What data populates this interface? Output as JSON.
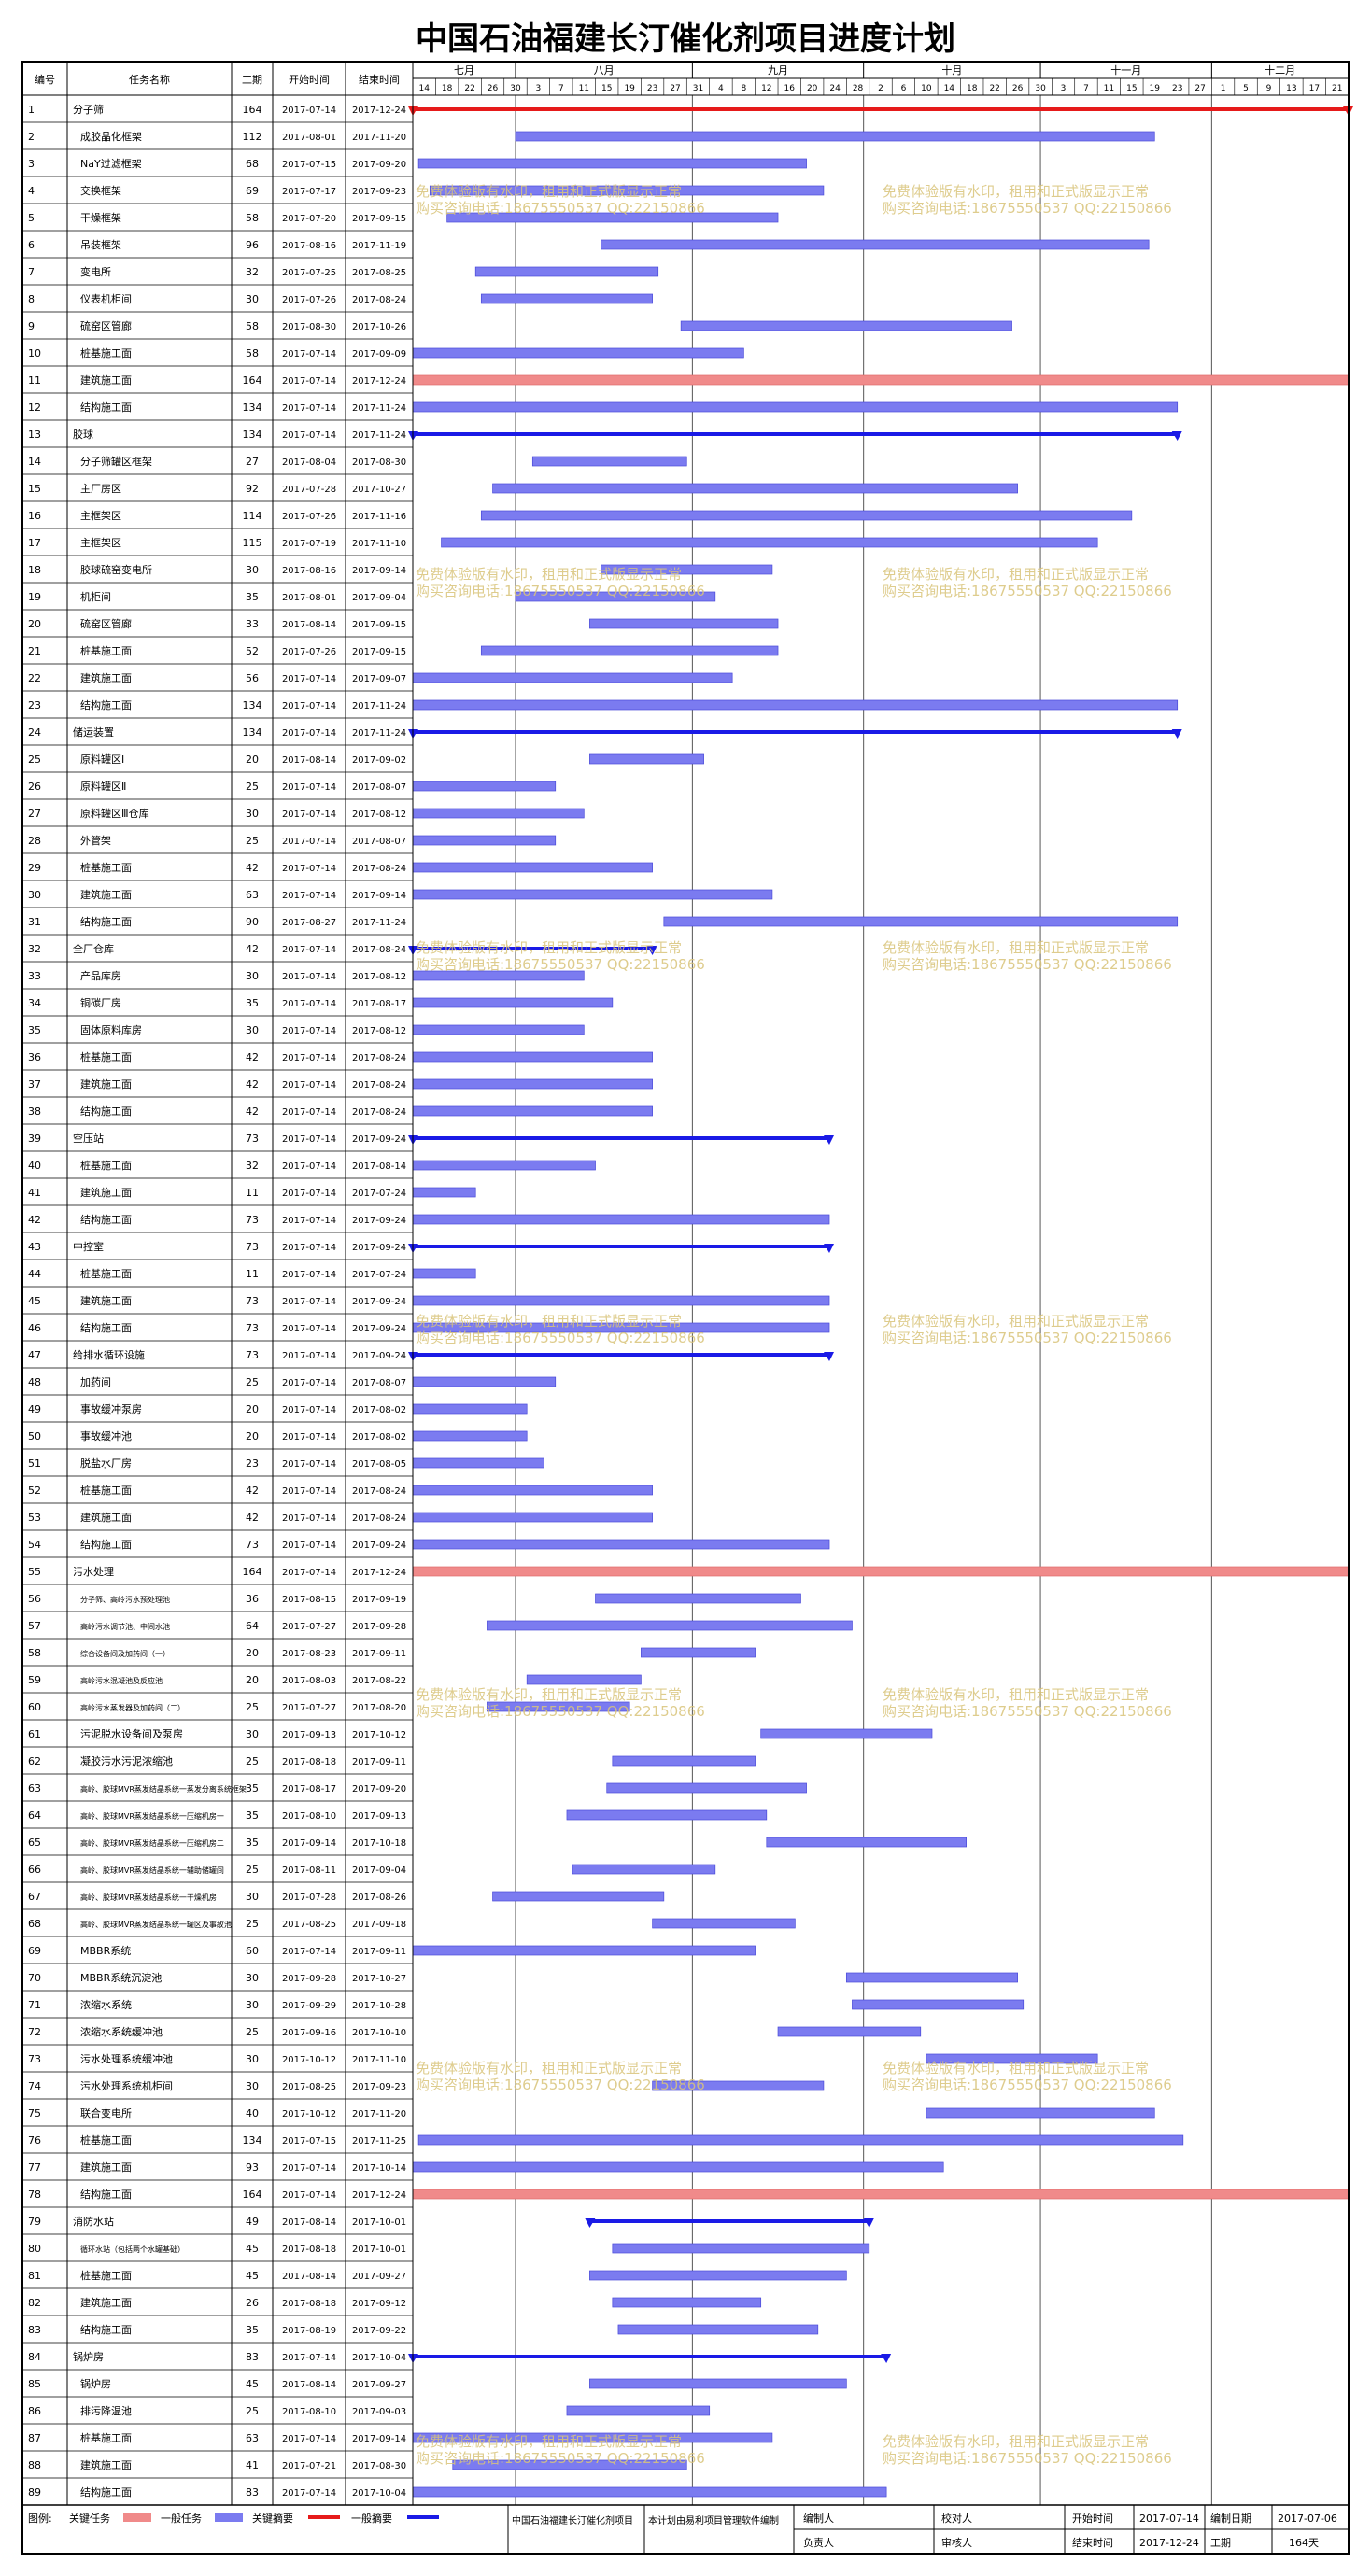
{
  "title": "中国石油福建长汀催化剂项目进度计划",
  "headers": {
    "id": "编号",
    "name": "任务名称",
    "duration": "工期",
    "start": "开始时间",
    "end": "结束时间"
  },
  "months": [
    "七月",
    "八月",
    "九月",
    "十月",
    "十一月",
    "十二月"
  ],
  "day_ticks": [
    "14",
    "18",
    "22",
    "26",
    "30",
    "3",
    "7",
    "11",
    "15",
    "19",
    "23",
    "27",
    "31",
    "4",
    "8",
    "12",
    "16",
    "20",
    "24",
    "28",
    "2",
    "6",
    "10",
    "14",
    "18",
    "22",
    "26",
    "30",
    "3",
    "7",
    "11",
    "15",
    "19",
    "23",
    "27",
    "1",
    "5",
    "9",
    "13",
    "17",
    "21"
  ],
  "watermark": {
    "line1": "免费体验版有水印，租用和正式版显示正常",
    "line2": "购买咨询电话:18675550537 QQ:22150866"
  },
  "colors": {
    "general": "#7b7bf0",
    "key": "#f08a8a",
    "summary_general": "#1a1ae6",
    "summary_key": "#e61a1a"
  },
  "footer": {
    "legend_label": "图例:",
    "legend_key": "关键任务",
    "legend_general": "一般任务",
    "legend_key_summary": "关键摘要",
    "legend_general_summary": "一般摘要",
    "project": "中国石油福建长汀催化剂项目",
    "software": "本计划由易利项目管理软件编制",
    "editor": "编制人",
    "checker": "校对人",
    "responsible": "负责人",
    "reviewer": "审核人",
    "start_label": "开始时间",
    "start_value": "2017-07-14",
    "end_label": "结束时间",
    "end_value": "2017-12-24",
    "date_label": "编制日期",
    "date_value": "2017-07-06",
    "duration_label": "工期",
    "duration_value": "164天"
  },
  "chart_data": {
    "type": "gantt",
    "axis_start": "2017-07-14",
    "axis_end": "2017-12-24",
    "tasks": [
      {
        "id": "1",
        "name": "分子筛",
        "duration": "164",
        "start": "2017-07-14",
        "end": "2017-12-24",
        "type": "summary_key",
        "level": 0
      },
      {
        "id": "2",
        "name": "成胶晶化框架",
        "duration": "112",
        "start": "2017-08-01",
        "end": "2017-11-20",
        "type": "general",
        "level": 1
      },
      {
        "id": "3",
        "name": "NaY过滤框架",
        "duration": "68",
        "start": "2017-07-15",
        "end": "2017-09-20",
        "type": "general",
        "level": 1
      },
      {
        "id": "4",
        "name": "交换框架",
        "duration": "69",
        "start": "2017-07-17",
        "end": "2017-09-23",
        "type": "general",
        "level": 1
      },
      {
        "id": "5",
        "name": "干燥框架",
        "duration": "58",
        "start": "2017-07-20",
        "end": "2017-09-15",
        "type": "general",
        "level": 1
      },
      {
        "id": "6",
        "name": "吊装框架",
        "duration": "96",
        "start": "2017-08-16",
        "end": "2017-11-19",
        "type": "general",
        "level": 1
      },
      {
        "id": "7",
        "name": "变电所",
        "duration": "32",
        "start": "2017-07-25",
        "end": "2017-08-25",
        "type": "general",
        "level": 1
      },
      {
        "id": "8",
        "name": "仪表机柜间",
        "duration": "30",
        "start": "2017-07-26",
        "end": "2017-08-24",
        "type": "general",
        "level": 1
      },
      {
        "id": "9",
        "name": "硫窑区管廊",
        "duration": "58",
        "start": "2017-08-30",
        "end": "2017-10-26",
        "type": "general",
        "level": 1
      },
      {
        "id": "10",
        "name": "桩基施工面",
        "duration": "58",
        "start": "2017-07-14",
        "end": "2017-09-09",
        "type": "general",
        "level": 1
      },
      {
        "id": "11",
        "name": "建筑施工面",
        "duration": "164",
        "start": "2017-07-14",
        "end": "2017-12-24",
        "type": "key",
        "level": 1
      },
      {
        "id": "12",
        "name": "结构施工面",
        "duration": "134",
        "start": "2017-07-14",
        "end": "2017-11-24",
        "type": "general",
        "level": 1
      },
      {
        "id": "13",
        "name": "胶球",
        "duration": "134",
        "start": "2017-07-14",
        "end": "2017-11-24",
        "type": "summary_general",
        "level": 0
      },
      {
        "id": "14",
        "name": "分子筛罐区框架",
        "duration": "27",
        "start": "2017-08-04",
        "end": "2017-08-30",
        "type": "general",
        "level": 1
      },
      {
        "id": "15",
        "name": "主厂房区",
        "duration": "92",
        "start": "2017-07-28",
        "end": "2017-10-27",
        "type": "general",
        "level": 1
      },
      {
        "id": "16",
        "name": "主框架区",
        "duration": "114",
        "start": "2017-07-26",
        "end": "2017-11-16",
        "type": "general",
        "level": 1
      },
      {
        "id": "17",
        "name": "主框架区",
        "duration": "115",
        "start": "2017-07-19",
        "end": "2017-11-10",
        "type": "general",
        "level": 1
      },
      {
        "id": "18",
        "name": "胶球硫窑变电所",
        "duration": "30",
        "start": "2017-08-16",
        "end": "2017-09-14",
        "type": "general",
        "level": 1
      },
      {
        "id": "19",
        "name": "机柜间",
        "duration": "35",
        "start": "2017-08-01",
        "end": "2017-09-04",
        "type": "general",
        "level": 1
      },
      {
        "id": "20",
        "name": "硫窑区管廊",
        "duration": "33",
        "start": "2017-08-14",
        "end": "2017-09-15",
        "type": "general",
        "level": 1
      },
      {
        "id": "21",
        "name": "桩基施工面",
        "duration": "52",
        "start": "2017-07-26",
        "end": "2017-09-15",
        "type": "general",
        "level": 1
      },
      {
        "id": "22",
        "name": "建筑施工面",
        "duration": "56",
        "start": "2017-07-14",
        "end": "2017-09-07",
        "type": "general",
        "level": 1
      },
      {
        "id": "23",
        "name": "结构施工面",
        "duration": "134",
        "start": "2017-07-14",
        "end": "2017-11-24",
        "type": "general",
        "level": 1
      },
      {
        "id": "24",
        "name": "储运装置",
        "duration": "134",
        "start": "2017-07-14",
        "end": "2017-11-24",
        "type": "summary_general",
        "level": 0
      },
      {
        "id": "25",
        "name": "原料罐区Ⅰ",
        "duration": "20",
        "start": "2017-08-14",
        "end": "2017-09-02",
        "type": "general",
        "level": 1
      },
      {
        "id": "26",
        "name": "原料罐区Ⅱ",
        "duration": "25",
        "start": "2017-07-14",
        "end": "2017-08-07",
        "type": "general",
        "level": 1
      },
      {
        "id": "27",
        "name": "原料罐区Ⅲ仓库",
        "duration": "30",
        "start": "2017-07-14",
        "end": "2017-08-12",
        "type": "general",
        "level": 1
      },
      {
        "id": "28",
        "name": "外管架",
        "duration": "25",
        "start": "2017-07-14",
        "end": "2017-08-07",
        "type": "general",
        "level": 1
      },
      {
        "id": "29",
        "name": "桩基施工面",
        "duration": "42",
        "start": "2017-07-14",
        "end": "2017-08-24",
        "type": "general",
        "level": 1
      },
      {
        "id": "30",
        "name": "建筑施工面",
        "duration": "63",
        "start": "2017-07-14",
        "end": "2017-09-14",
        "type": "general",
        "level": 1
      },
      {
        "id": "31",
        "name": "结构施工面",
        "duration": "90",
        "start": "2017-08-27",
        "end": "2017-11-24",
        "type": "general",
        "level": 1
      },
      {
        "id": "32",
        "name": "全厂仓库",
        "duration": "42",
        "start": "2017-07-14",
        "end": "2017-08-24",
        "type": "summary_general",
        "level": 0
      },
      {
        "id": "33",
        "name": "产品库房",
        "duration": "30",
        "start": "2017-07-14",
        "end": "2017-08-12",
        "type": "general",
        "level": 1
      },
      {
        "id": "34",
        "name": "铜碳厂房",
        "duration": "35",
        "start": "2017-07-14",
        "end": "2017-08-17",
        "type": "general",
        "level": 1
      },
      {
        "id": "35",
        "name": "固体原料库房",
        "duration": "30",
        "start": "2017-07-14",
        "end": "2017-08-12",
        "type": "general",
        "level": 1
      },
      {
        "id": "36",
        "name": "桩基施工面",
        "duration": "42",
        "start": "2017-07-14",
        "end": "2017-08-24",
        "type": "general",
        "level": 1
      },
      {
        "id": "37",
        "name": "建筑施工面",
        "duration": "42",
        "start": "2017-07-14",
        "end": "2017-08-24",
        "type": "general",
        "level": 1
      },
      {
        "id": "38",
        "name": "结构施工面",
        "duration": "42",
        "start": "2017-07-14",
        "end": "2017-08-24",
        "type": "general",
        "level": 1
      },
      {
        "id": "39",
        "name": "空压站",
        "duration": "73",
        "start": "2017-07-14",
        "end": "2017-09-24",
        "type": "summary_general",
        "level": 0
      },
      {
        "id": "40",
        "name": "桩基施工面",
        "duration": "32",
        "start": "2017-07-14",
        "end": "2017-08-14",
        "type": "general",
        "level": 1
      },
      {
        "id": "41",
        "name": "建筑施工面",
        "duration": "11",
        "start": "2017-07-14",
        "end": "2017-07-24",
        "type": "general",
        "level": 1
      },
      {
        "id": "42",
        "name": "结构施工面",
        "duration": "73",
        "start": "2017-07-14",
        "end": "2017-09-24",
        "type": "general",
        "level": 1
      },
      {
        "id": "43",
        "name": "中控室",
        "duration": "73",
        "start": "2017-07-14",
        "end": "2017-09-24",
        "type": "summary_general",
        "level": 0
      },
      {
        "id": "44",
        "name": "桩基施工面",
        "duration": "11",
        "start": "2017-07-14",
        "end": "2017-07-24",
        "type": "general",
        "level": 1
      },
      {
        "id": "45",
        "name": "建筑施工面",
        "duration": "73",
        "start": "2017-07-14",
        "end": "2017-09-24",
        "type": "general",
        "level": 1
      },
      {
        "id": "46",
        "name": "结构施工面",
        "duration": "73",
        "start": "2017-07-14",
        "end": "2017-09-24",
        "type": "general",
        "level": 1
      },
      {
        "id": "47",
        "name": "给排水循环设施",
        "duration": "73",
        "start": "2017-07-14",
        "end": "2017-09-24",
        "type": "summary_general",
        "level": 0
      },
      {
        "id": "48",
        "name": "加药间",
        "duration": "25",
        "start": "2017-07-14",
        "end": "2017-08-07",
        "type": "general",
        "level": 1
      },
      {
        "id": "49",
        "name": "事故缓冲泵房",
        "duration": "20",
        "start": "2017-07-14",
        "end": "2017-08-02",
        "type": "general",
        "level": 1
      },
      {
        "id": "50",
        "name": "事故缓冲池",
        "duration": "20",
        "start": "2017-07-14",
        "end": "2017-08-02",
        "type": "general",
        "level": 1
      },
      {
        "id": "51",
        "name": "脱盐水厂房",
        "duration": "23",
        "start": "2017-07-14",
        "end": "2017-08-05",
        "type": "general",
        "level": 1
      },
      {
        "id": "52",
        "name": "桩基施工面",
        "duration": "42",
        "start": "2017-07-14",
        "end": "2017-08-24",
        "type": "general",
        "level": 1
      },
      {
        "id": "53",
        "name": "建筑施工面",
        "duration": "42",
        "start": "2017-07-14",
        "end": "2017-08-24",
        "type": "general",
        "level": 1
      },
      {
        "id": "54",
        "name": "结构施工面",
        "duration": "73",
        "start": "2017-07-14",
        "end": "2017-09-24",
        "type": "general",
        "level": 1
      },
      {
        "id": "55",
        "name": "污水处理",
        "duration": "164",
        "start": "2017-07-14",
        "end": "2017-12-24",
        "type": "key",
        "level": 0
      },
      {
        "id": "56",
        "name": "分子筛、高岭污水预处理池",
        "duration": "36",
        "start": "2017-08-15",
        "end": "2017-09-19",
        "type": "general",
        "level": 1,
        "small": true
      },
      {
        "id": "57",
        "name": "高岭污水调节池、中间水池",
        "duration": "64",
        "start": "2017-07-27",
        "end": "2017-09-28",
        "type": "general",
        "level": 1,
        "small": true
      },
      {
        "id": "58",
        "name": "综合设备间及加药间（一）",
        "duration": "20",
        "start": "2017-08-23",
        "end": "2017-09-11",
        "type": "general",
        "level": 1,
        "small": true
      },
      {
        "id": "59",
        "name": "高岭污水混凝池及反应池",
        "duration": "20",
        "start": "2017-08-03",
        "end": "2017-08-22",
        "type": "general",
        "level": 1,
        "small": true
      },
      {
        "id": "60",
        "name": "高岭污水蒸发器及加药间（二）",
        "duration": "25",
        "start": "2017-07-27",
        "end": "2017-08-20",
        "type": "general",
        "level": 1,
        "small": true
      },
      {
        "id": "61",
        "name": "污泥脱水设备间及泵房",
        "duration": "30",
        "start": "2017-09-13",
        "end": "2017-10-12",
        "type": "general",
        "level": 1
      },
      {
        "id": "62",
        "name": "凝胶污水污泥浓缩池",
        "duration": "25",
        "start": "2017-08-18",
        "end": "2017-09-11",
        "type": "general",
        "level": 1
      },
      {
        "id": "63",
        "name": "高岭、胶球MVR蒸发结晶系统一蒸发分离系统框架",
        "duration": "35",
        "start": "2017-08-17",
        "end": "2017-09-20",
        "type": "general",
        "level": 1,
        "small": true
      },
      {
        "id": "64",
        "name": "高岭、胶球MVR蒸发结晶系统一压缩机房一",
        "duration": "35",
        "start": "2017-08-10",
        "end": "2017-09-13",
        "type": "general",
        "level": 1,
        "small": true
      },
      {
        "id": "65",
        "name": "高岭、胶球MVR蒸发结晶系统一压缩机房二",
        "duration": "35",
        "start": "2017-09-14",
        "end": "2017-10-18",
        "type": "general",
        "level": 1,
        "small": true
      },
      {
        "id": "66",
        "name": "高岭、胶球MVR蒸发结晶系统一辅助储罐间",
        "duration": "25",
        "start": "2017-08-11",
        "end": "2017-09-04",
        "type": "general",
        "level": 1,
        "small": true
      },
      {
        "id": "67",
        "name": "高岭、胶球MVR蒸发结晶系统一干燥机房",
        "duration": "30",
        "start": "2017-07-28",
        "end": "2017-08-26",
        "type": "general",
        "level": 1,
        "small": true
      },
      {
        "id": "68",
        "name": "高岭、胶球MVR蒸发结晶系统一罐区及事故池",
        "duration": "25",
        "start": "2017-08-25",
        "end": "2017-09-18",
        "type": "general",
        "level": 1,
        "small": true
      },
      {
        "id": "69",
        "name": "MBBR系统",
        "duration": "60",
        "start": "2017-07-14",
        "end": "2017-09-11",
        "type": "general",
        "level": 1
      },
      {
        "id": "70",
        "name": "MBBR系统沉淀池",
        "duration": "30",
        "start": "2017-09-28",
        "end": "2017-10-27",
        "type": "general",
        "level": 1
      },
      {
        "id": "71",
        "name": "浓缩水系统",
        "duration": "30",
        "start": "2017-09-29",
        "end": "2017-10-28",
        "type": "general",
        "level": 1
      },
      {
        "id": "72",
        "name": "浓缩水系统缓冲池",
        "duration": "25",
        "start": "2017-09-16",
        "end": "2017-10-10",
        "type": "general",
        "level": 1
      },
      {
        "id": "73",
        "name": "污水处理系统缓冲池",
        "duration": "30",
        "start": "2017-10-12",
        "end": "2017-11-10",
        "type": "general",
        "level": 1
      },
      {
        "id": "74",
        "name": "污水处理系统机柜间",
        "duration": "30",
        "start": "2017-08-25",
        "end": "2017-09-23",
        "type": "general",
        "level": 1
      },
      {
        "id": "75",
        "name": "联合变电所",
        "duration": "40",
        "start": "2017-10-12",
        "end": "2017-11-20",
        "type": "general",
        "level": 1
      },
      {
        "id": "76",
        "name": "桩基施工面",
        "duration": "134",
        "start": "2017-07-15",
        "end": "2017-11-25",
        "type": "general",
        "level": 1
      },
      {
        "id": "77",
        "name": "建筑施工面",
        "duration": "93",
        "start": "2017-07-14",
        "end": "2017-10-14",
        "type": "general",
        "level": 1
      },
      {
        "id": "78",
        "name": "结构施工面",
        "duration": "164",
        "start": "2017-07-14",
        "end": "2017-12-24",
        "type": "key",
        "level": 1
      },
      {
        "id": "79",
        "name": "消防水站",
        "duration": "49",
        "start": "2017-08-14",
        "end": "2017-10-01",
        "type": "summary_general",
        "level": 0
      },
      {
        "id": "80",
        "name": "循环水站（包括两个水罐基础）",
        "duration": "45",
        "start": "2017-08-18",
        "end": "2017-10-01",
        "type": "general",
        "level": 1,
        "small": true
      },
      {
        "id": "81",
        "name": "桩基施工面",
        "duration": "45",
        "start": "2017-08-14",
        "end": "2017-09-27",
        "type": "general",
        "level": 1
      },
      {
        "id": "82",
        "name": "建筑施工面",
        "duration": "26",
        "start": "2017-08-18",
        "end": "2017-09-12",
        "type": "general",
        "level": 1
      },
      {
        "id": "83",
        "name": "结构施工面",
        "duration": "35",
        "start": "2017-08-19",
        "end": "2017-09-22",
        "type": "general",
        "level": 1
      },
      {
        "id": "84",
        "name": "锅炉房",
        "duration": "83",
        "start": "2017-07-14",
        "end": "2017-10-04",
        "type": "summary_general",
        "level": 0
      },
      {
        "id": "85",
        "name": "锅炉房",
        "duration": "45",
        "start": "2017-08-14",
        "end": "2017-09-27",
        "type": "general",
        "level": 1
      },
      {
        "id": "86",
        "name": "排污降温池",
        "duration": "25",
        "start": "2017-08-10",
        "end": "2017-09-03",
        "type": "general",
        "level": 1
      },
      {
        "id": "87",
        "name": "桩基施工面",
        "duration": "63",
        "start": "2017-07-14",
        "end": "2017-09-14",
        "type": "general",
        "level": 1
      },
      {
        "id": "88",
        "name": "建筑施工面",
        "duration": "41",
        "start": "2017-07-21",
        "end": "2017-08-30",
        "type": "general",
        "level": 1
      },
      {
        "id": "89",
        "name": "结构施工面",
        "duration": "83",
        "start": "2017-07-14",
        "end": "2017-10-04",
        "type": "general",
        "level": 1
      }
    ]
  }
}
